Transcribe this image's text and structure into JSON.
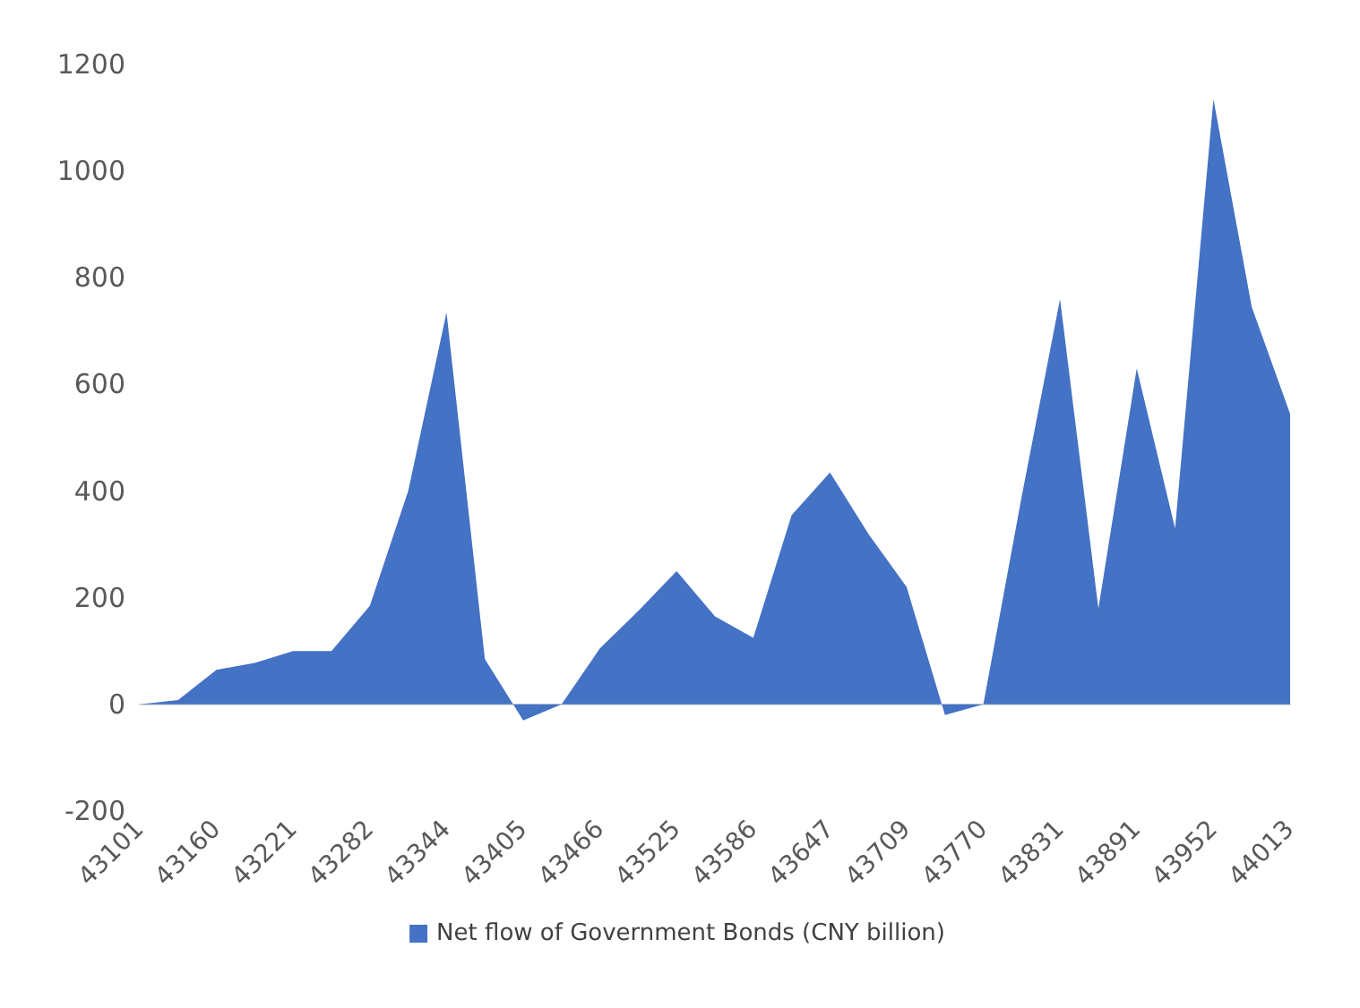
{
  "chart_data": {
    "type": "area",
    "categories": [
      "43101",
      null,
      "43160",
      null,
      "43221",
      null,
      "43282",
      null,
      "43344",
      null,
      "43405",
      null,
      "43466",
      null,
      "43525",
      null,
      "43586",
      null,
      "43647",
      null,
      "43709",
      null,
      "43770",
      null,
      "43831",
      null,
      "43891",
      null,
      "43952",
      null,
      "44013"
    ],
    "series": [
      {
        "name": "Net flow of Government Bonds (CNY billion)",
        "color": "#4472c4",
        "values": [
          0,
          8,
          65,
          78,
          100,
          100,
          185,
          400,
          735,
          85,
          -30,
          0,
          105,
          175,
          250,
          165,
          125,
          355,
          435,
          320,
          220,
          -20,
          0,
          390,
          760,
          180,
          630,
          330,
          1135,
          745,
          545
        ]
      }
    ],
    "ylim": [
      -200,
      1200
    ],
    "yticks": [
      -200,
      0,
      200,
      400,
      600,
      800,
      1000,
      1200
    ],
    "legend": "bottom"
  }
}
